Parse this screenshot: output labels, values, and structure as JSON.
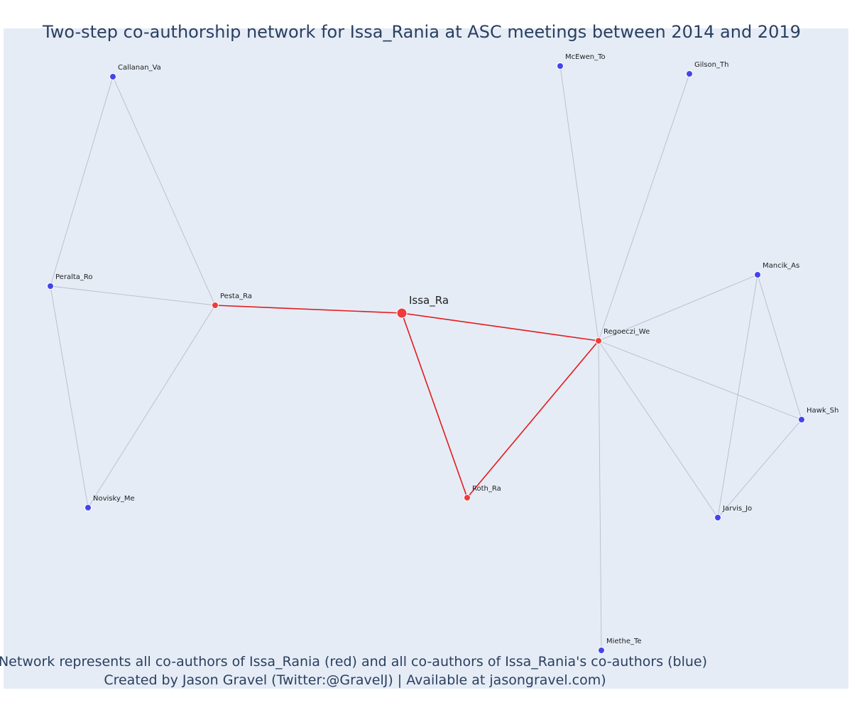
{
  "title": "Two-step co-authorship network for Issa_Rania at ASC meetings between 2014 and 2019",
  "caption_lines": [
    "Network represents all co-authors of Issa_Rania (red) and all co-authors of Issa_Rania's co-authors (blue)",
    "Created by Jason Gravel (Twitter:@GravelJ) | Available at jasongravel.com)"
  ],
  "colors": {
    "background": "#e5ecf6",
    "first_degree": "#ef3b3b",
    "second_degree": "#4444ee",
    "edge_first_degree": "#e41a1c",
    "edge_second_degree": "#b8bccb",
    "text": "#2a3f5f"
  },
  "nodes": [
    {
      "id": "Issa_Ra",
      "group": "focal"
    },
    {
      "id": "Pesta_Ra",
      "group": "first"
    },
    {
      "id": "Regoeczi_We",
      "group": "first"
    },
    {
      "id": "Roth_Ra",
      "group": "first"
    },
    {
      "id": "Callanan_Va",
      "group": "second"
    },
    {
      "id": "Peralta_Ro",
      "group": "second"
    },
    {
      "id": "Novisky_Me",
      "group": "second"
    },
    {
      "id": "McEwen_To",
      "group": "second"
    },
    {
      "id": "Gilson_Th",
      "group": "second"
    },
    {
      "id": "Mancik_As",
      "group": "second"
    },
    {
      "id": "Hawk_Sh",
      "group": "second"
    },
    {
      "id": "Jarvis_Jo",
      "group": "second"
    },
    {
      "id": "Miethe_Te",
      "group": "second"
    }
  ],
  "edges": [
    [
      "Issa_Ra",
      "Pesta_Ra"
    ],
    [
      "Issa_Ra",
      "Regoeczi_We"
    ],
    [
      "Issa_Ra",
      "Roth_Ra"
    ],
    [
      "Roth_Ra",
      "Regoeczi_We"
    ],
    [
      "Pesta_Ra",
      "Callanan_Va"
    ],
    [
      "Pesta_Ra",
      "Peralta_Ro"
    ],
    [
      "Pesta_Ra",
      "Novisky_Me"
    ],
    [
      "Callanan_Va",
      "Peralta_Ro"
    ],
    [
      "Peralta_Ro",
      "Novisky_Me"
    ],
    [
      "Regoeczi_We",
      "McEwen_To"
    ],
    [
      "Regoeczi_We",
      "Gilson_Th"
    ],
    [
      "Regoeczi_We",
      "Mancik_As"
    ],
    [
      "Regoeczi_We",
      "Hawk_Sh"
    ],
    [
      "Regoeczi_We",
      "Jarvis_Jo"
    ],
    [
      "Regoeczi_We",
      "Miethe_Te"
    ],
    [
      "Mancik_As",
      "Hawk_Sh"
    ],
    [
      "Mancik_As",
      "Jarvis_Jo"
    ],
    [
      "Hawk_Sh",
      "Jarvis_Jo"
    ]
  ]
}
